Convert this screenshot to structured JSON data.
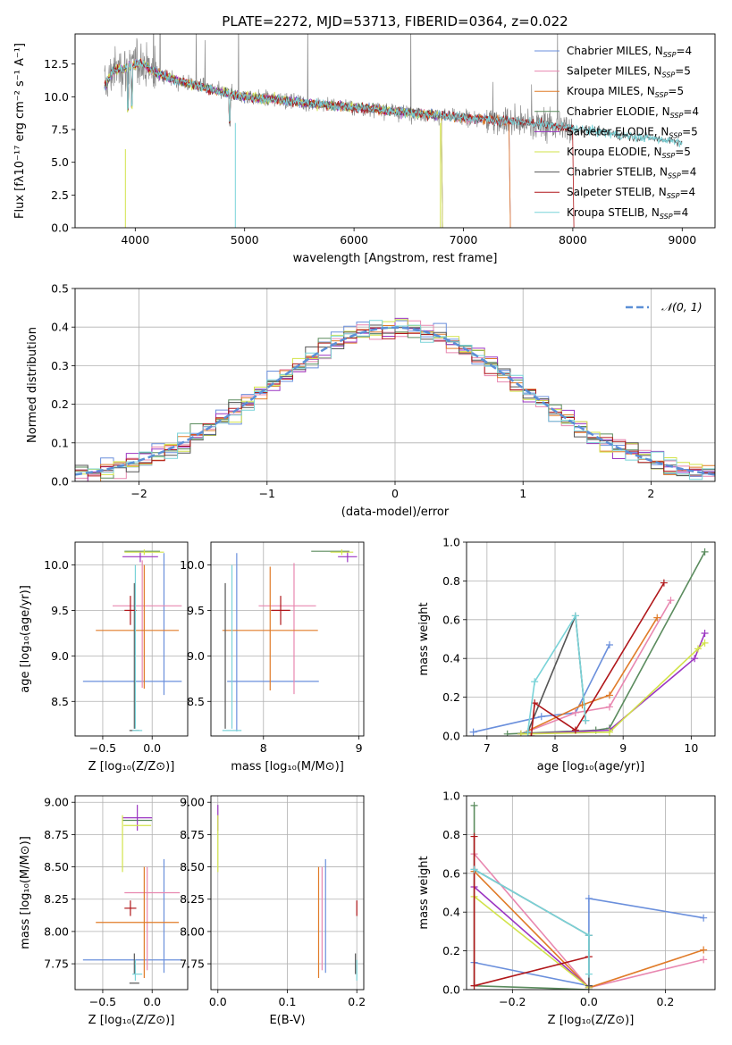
{
  "colors": {
    "Chabrier MILES": "#6a8fdc",
    "Salpeter MILES": "#e887b0",
    "Kroupa MILES": "#e07b28",
    "Chabrier ELODIE": "#5b8c5e",
    "Salpeter ELODIE": "#9b35c2",
    "Kroupa ELODIE": "#d2e34a",
    "Chabrier STELIB": "#555555",
    "Salpeter STELIB": "#b0171a",
    "Kroupa STELIB": "#79d3d8",
    "data": "#8a8a8a",
    "gauss": "#5b8fd6"
  },
  "chart_data": [
    {
      "id": "spectrum",
      "type": "line",
      "title": "PLATE=2272, MJD=53713, FIBERID=0364, z=0.022",
      "xlabel": "wavelength [Angstrom, rest frame]",
      "ylabel": "Flux [fλ10⁻¹⁷ erg cm⁻² s⁻¹ A⁻¹]",
      "xlim": [
        3450,
        9300
      ],
      "ylim": [
        0,
        14.8
      ],
      "xticks": [
        4000,
        5000,
        6000,
        7000,
        8000,
        9000
      ],
      "yticks": [
        0.0,
        2.5,
        5.0,
        7.5,
        10.0,
        12.5
      ],
      "grid": false,
      "legend_position": "top-right",
      "legend": [
        {
          "name": "Chabrier MILES",
          "nssp": "4"
        },
        {
          "name": "Salpeter MILES",
          "nssp": "5"
        },
        {
          "name": "Kroupa MILES",
          "nssp": "5"
        },
        {
          "name": "Chabrier ELODIE",
          "nssp": "4"
        },
        {
          "name": "Salpeter ELODIE",
          "nssp": "5"
        },
        {
          "name": "Kroupa ELODIE",
          "nssp": "5"
        },
        {
          "name": "Chabrier STELIB",
          "nssp": "4"
        },
        {
          "name": "Salpeter STELIB",
          "nssp": "4"
        },
        {
          "name": "Kroupa STELIB",
          "nssp": "4"
        }
      ],
      "continuum": [
        [
          3720,
          10.8
        ],
        [
          3800,
          12.0
        ],
        [
          3950,
          12.3
        ],
        [
          4050,
          12.6
        ],
        [
          4200,
          11.8
        ],
        [
          4400,
          11.2
        ],
        [
          4600,
          10.8
        ],
        [
          4800,
          10.3
        ],
        [
          5000,
          10.0
        ],
        [
          5300,
          9.8
        ],
        [
          5600,
          9.5
        ],
        [
          6000,
          9.2
        ],
        [
          6500,
          8.8
        ],
        [
          7000,
          8.4
        ],
        [
          7500,
          8.1
        ],
        [
          8000,
          7.6
        ],
        [
          8500,
          7.0
        ],
        [
          9000,
          6.6
        ]
      ]
    },
    {
      "id": "residuals",
      "type": "histogram",
      "xlabel": "(data-model)/error",
      "ylabel": "Normed distribution",
      "xlim": [
        -2.5,
        2.5
      ],
      "ylim": [
        0,
        0.5
      ],
      "xticks": [
        -2,
        -1,
        0,
        1,
        2
      ],
      "yticks": [
        0.0,
        0.1,
        0.2,
        0.3,
        0.4,
        0.5
      ],
      "grid": true,
      "legend_position": "top-right",
      "reference_label": "𝒩(0, 1)",
      "bin_width": 0.1
    },
    {
      "id": "age-vs-Z",
      "type": "errorbar",
      "xlabel": "Z [log₁₀(Z/Z⊙)]",
      "ylabel": "age  [log₁₀(age/yr)]",
      "xlim": [
        -0.78,
        0.36
      ],
      "ylim": [
        8.12,
        10.25
      ],
      "xticks": [
        -0.5,
        0.0
      ],
      "yticks": [
        8.5,
        9.0,
        9.5,
        10.0
      ],
      "grid": true,
      "points": [
        {
          "series": "Chabrier MILES",
          "x": -0.2,
          "xerr": 0.5,
          "y": 8.72,
          "yerr": 0
        },
        {
          "series": "Chabrier MILES",
          "x": 0.12,
          "xerr": 0,
          "y": 9.35,
          "yerr": 0.78
        },
        {
          "series": "Salpeter MILES",
          "x": -0.05,
          "xerr": 0.35,
          "y": 9.55,
          "yerr": 0
        },
        {
          "series": "Salpeter MILES",
          "x": -0.1,
          "xerr": 0,
          "y": 9.35,
          "yerr": 0.7
        },
        {
          "series": "Kroupa MILES",
          "x": -0.15,
          "xerr": 0.42,
          "y": 9.28,
          "yerr": 0
        },
        {
          "series": "Kroupa MILES",
          "x": -0.08,
          "xerr": 0,
          "y": 9.32,
          "yerr": 0.68
        },
        {
          "series": "Chabrier ELODIE",
          "x": -0.1,
          "xerr": 0.18,
          "y": 10.15,
          "yerr": 0
        },
        {
          "series": "Salpeter ELODIE",
          "x": -0.12,
          "xerr": 0.18,
          "y": 10.09,
          "yerr": 0.06
        },
        {
          "series": "Kroupa ELODIE",
          "x": -0.08,
          "xerr": 0.2,
          "y": 10.14,
          "yerr": 0.03
        },
        {
          "series": "Chabrier STELIB",
          "x": -0.18,
          "xerr": 0.05,
          "y": 8.18,
          "yerr": 0
        },
        {
          "series": "Chabrier STELIB",
          "x": -0.18,
          "xerr": 0,
          "y": 9.0,
          "yerr": 0.8
        },
        {
          "series": "Salpeter STELIB",
          "x": -0.22,
          "xerr": 0.06,
          "y": 9.5,
          "yerr": 0.16
        },
        {
          "series": "Kroupa STELIB",
          "x": -0.15,
          "xerr": 0.05,
          "y": 8.18,
          "yerr": 0
        },
        {
          "series": "Kroupa STELIB",
          "x": -0.17,
          "xerr": 0,
          "y": 9.1,
          "yerr": 0.9
        }
      ]
    },
    {
      "id": "age-vs-mass",
      "type": "errorbar",
      "xlabel": "mass [log₁₀(M/M⊙)]",
      "ylabel": "",
      "xlim": [
        7.45,
        9.05
      ],
      "ylim": [
        8.12,
        10.25
      ],
      "xticks": [
        8,
        9
      ],
      "yticks": [
        8.5,
        9.0,
        9.5,
        10.0
      ],
      "grid": true,
      "points": [
        {
          "series": "Chabrier MILES",
          "x": 8.1,
          "xerr": 0.48,
          "y": 8.72,
          "yerr": 0
        },
        {
          "series": "Chabrier MILES",
          "x": 7.72,
          "xerr": 0,
          "y": 9.15,
          "yerr": 0.98
        },
        {
          "series": "Salpeter MILES",
          "x": 8.25,
          "xerr": 0.3,
          "y": 9.55,
          "yerr": 0
        },
        {
          "series": "Salpeter MILES",
          "x": 8.32,
          "xerr": 0,
          "y": 9.3,
          "yerr": 0.72
        },
        {
          "series": "Kroupa MILES",
          "x": 8.07,
          "xerr": 0.5,
          "y": 9.28,
          "yerr": 0
        },
        {
          "series": "Kroupa MILES",
          "x": 8.07,
          "xerr": 0,
          "y": 9.3,
          "yerr": 0.68
        },
        {
          "series": "Chabrier ELODIE",
          "x": 8.7,
          "xerr": 0.2,
          "y": 10.15,
          "yerr": 0
        },
        {
          "series": "Salpeter ELODIE",
          "x": 8.88,
          "xerr": 0.1,
          "y": 10.09,
          "yerr": 0.06
        },
        {
          "series": "Kroupa ELODIE",
          "x": 8.82,
          "xerr": 0.12,
          "y": 10.14,
          "yerr": 0.03
        },
        {
          "series": "Chabrier STELIB",
          "x": 7.6,
          "xerr": 0,
          "y": 9.0,
          "yerr": 0.8
        },
        {
          "series": "Salpeter STELIB",
          "x": 8.18,
          "xerr": 0.1,
          "y": 9.5,
          "yerr": 0.16
        },
        {
          "series": "Kroupa STELIB",
          "x": 7.67,
          "xerr": 0.1,
          "y": 8.18,
          "yerr": 0
        },
        {
          "series": "Kroupa STELIB",
          "x": 7.67,
          "xerr": 0,
          "y": 9.1,
          "yerr": 0.9
        }
      ]
    },
    {
      "id": "massweight-vs-age",
      "type": "line",
      "xlabel": "age  [log₁₀(age/yr)]",
      "ylabel": "mass weight",
      "xlim": [
        6.7,
        10.35
      ],
      "ylim": [
        0,
        1.0
      ],
      "xticks": [
        7,
        8,
        9,
        10
      ],
      "yticks": [
        0.0,
        0.2,
        0.4,
        0.6,
        0.8,
        1.0
      ],
      "grid": true,
      "series": [
        {
          "name": "Chabrier MILES",
          "points": [
            [
              6.8,
              0.02
            ],
            [
              7.8,
              0.1
            ],
            [
              8.3,
              0.12
            ],
            [
              8.8,
              0.47
            ]
          ]
        },
        {
          "name": "Salpeter MILES",
          "points": [
            [
              7.5,
              0.01
            ],
            [
              8.3,
              0.12
            ],
            [
              8.8,
              0.15
            ],
            [
              9.7,
              0.7
            ]
          ]
        },
        {
          "name": "Kroupa MILES",
          "points": [
            [
              7.5,
              0.01
            ],
            [
              8.4,
              0.16
            ],
            [
              8.8,
              0.21
            ],
            [
              9.5,
              0.61
            ]
          ]
        },
        {
          "name": "Chabrier ELODIE",
          "points": [
            [
              7.3,
              0.01
            ],
            [
              8.6,
              0.03
            ],
            [
              8.8,
              0.04
            ],
            [
              10.2,
              0.95
            ]
          ]
        },
        {
          "name": "Salpeter ELODIE",
          "points": [
            [
              7.5,
              0.01
            ],
            [
              8.8,
              0.03
            ],
            [
              10.05,
              0.4
            ],
            [
              10.2,
              0.53
            ]
          ]
        },
        {
          "name": "Kroupa ELODIE",
          "points": [
            [
              7.5,
              0.01
            ],
            [
              8.8,
              0.02
            ],
            [
              10.1,
              0.45
            ],
            [
              10.2,
              0.48
            ]
          ]
        },
        {
          "name": "Chabrier STELIB",
          "points": [
            [
              7.6,
              0.02
            ],
            [
              8.3,
              0.62
            ],
            [
              8.45,
              0.08
            ]
          ]
        },
        {
          "name": "Salpeter STELIB",
          "points": [
            [
              7.65,
              0.0
            ],
            [
              7.7,
              0.17
            ],
            [
              8.3,
              0.03
            ],
            [
              9.6,
              0.79
            ]
          ]
        },
        {
          "name": "Kroupa STELIB",
          "points": [
            [
              7.6,
              0.02
            ],
            [
              7.7,
              0.28
            ],
            [
              8.3,
              0.62
            ],
            [
              8.45,
              0.08
            ]
          ]
        }
      ]
    },
    {
      "id": "mass-vs-Z",
      "type": "errorbar",
      "xlabel": "Z [log₁₀(Z/Z⊙)]",
      "ylabel": "mass [log₁₀(M/M⊙)]",
      "xlim": [
        -0.78,
        0.36
      ],
      "ylim": [
        7.55,
        9.05
      ],
      "xticks": [
        -0.5,
        0.0
      ],
      "yticks": [
        7.75,
        8.0,
        8.25,
        8.5,
        8.75,
        9.0
      ],
      "grid": true,
      "points": [
        {
          "series": "Chabrier MILES",
          "x": -0.2,
          "xerr": 0.5,
          "y": 7.78,
          "yerr": 0
        },
        {
          "series": "Chabrier MILES",
          "x": 0.12,
          "xerr": 0,
          "y": 8.12,
          "yerr": 0.44
        },
        {
          "series": "Salpeter MILES",
          "x": 0.0,
          "xerr": 0.28,
          "y": 8.3,
          "yerr": 0
        },
        {
          "series": "Salpeter MILES",
          "x": -0.05,
          "xerr": 0,
          "y": 8.1,
          "yerr": 0.4
        },
        {
          "series": "Kroupa MILES",
          "x": -0.15,
          "xerr": 0.42,
          "y": 8.07,
          "yerr": 0
        },
        {
          "series": "Kroupa MILES",
          "x": -0.08,
          "xerr": 0,
          "y": 8.07,
          "yerr": 0.43
        },
        {
          "series": "Chabrier ELODIE",
          "x": -0.15,
          "xerr": 0.15,
          "y": 8.86,
          "yerr": 0
        },
        {
          "series": "Salpeter ELODIE",
          "x": -0.15,
          "xerr": 0.15,
          "y": 8.88,
          "yerr": 0.1
        },
        {
          "series": "Kroupa ELODIE",
          "x": -0.15,
          "xerr": 0.14,
          "y": 8.82,
          "yerr": 0
        },
        {
          "series": "Kroupa ELODIE",
          "x": -0.3,
          "xerr": 0,
          "y": 8.68,
          "yerr": 0.22
        },
        {
          "series": "Chabrier STELIB",
          "x": -0.18,
          "xerr": 0.05,
          "y": 7.6,
          "yerr": 0
        },
        {
          "series": "Chabrier STELIB",
          "x": -0.18,
          "xerr": 0,
          "y": 7.75,
          "yerr": 0.08
        },
        {
          "series": "Salpeter STELIB",
          "x": -0.22,
          "xerr": 0.06,
          "y": 8.18,
          "yerr": 0.06
        },
        {
          "series": "Kroupa STELIB",
          "x": -0.15,
          "xerr": 0.05,
          "y": 7.67,
          "yerr": 0
        },
        {
          "series": "Kroupa STELIB",
          "x": -0.17,
          "xerr": 0,
          "y": 7.7,
          "yerr": 0.08
        }
      ]
    },
    {
      "id": "mass-vs-EBV",
      "type": "errorbar",
      "xlabel": "E(B-V)",
      "ylabel": "",
      "xlim": [
        -0.01,
        0.21
      ],
      "ylim": [
        7.55,
        9.05
      ],
      "xticks": [
        0.0,
        0.1,
        0.2
      ],
      "yticks": [
        7.75,
        8.0,
        8.25,
        8.5,
        8.75,
        9.0
      ],
      "grid": true,
      "points": [
        {
          "series": "Chabrier MILES",
          "x": 0.155,
          "xerr": 0,
          "y": 8.12,
          "yerr": 0.44
        },
        {
          "series": "Salpeter MILES",
          "x": 0.15,
          "xerr": 0,
          "y": 8.1,
          "yerr": 0.4
        },
        {
          "series": "Kroupa MILES",
          "x": 0.145,
          "xerr": 0,
          "y": 8.07,
          "yerr": 0.43
        },
        {
          "series": "Salpeter ELODIE",
          "x": 0.0,
          "xerr": 0,
          "y": 8.88,
          "yerr": 0.1
        },
        {
          "series": "Kroupa ELODIE",
          "x": 0.0,
          "xerr": 0,
          "y": 8.68,
          "yerr": 0.22
        },
        {
          "series": "Chabrier STELIB",
          "x": 0.198,
          "xerr": 0,
          "y": 7.75,
          "yerr": 0.08
        },
        {
          "series": "Salpeter STELIB",
          "x": 0.2,
          "xerr": 0,
          "y": 8.18,
          "yerr": 0.06
        },
        {
          "series": "Kroupa STELIB",
          "x": 0.2,
          "xerr": 0,
          "y": 7.7,
          "yerr": 0.08
        }
      ]
    },
    {
      "id": "massweight-vs-Z",
      "type": "line",
      "xlabel": "Z [log₁₀(Z/Z⊙)]",
      "ylabel": "mass weight",
      "xlim": [
        -0.32,
        0.33
      ],
      "ylim": [
        0,
        1.0
      ],
      "xticks": [
        -0.2,
        0.0,
        0.2
      ],
      "yticks": [
        0.0,
        0.2,
        0.4,
        0.6,
        0.8,
        1.0
      ],
      "grid": true,
      "series": [
        {
          "name": "Chabrier MILES",
          "points": [
            [
              -0.3,
              0.14
            ],
            [
              0.0,
              0.02
            ],
            [
              0.0,
              0.47
            ],
            [
              0.3,
              0.37
            ]
          ]
        },
        {
          "name": "Salpeter MILES",
          "points": [
            [
              -0.3,
              0.7
            ],
            [
              0.0,
              0.01
            ],
            [
              0.3,
              0.155
            ]
          ]
        },
        {
          "name": "Kroupa MILES",
          "points": [
            [
              -0.3,
              0.61
            ],
            [
              0.0,
              0.01
            ],
            [
              0.3,
              0.205
            ]
          ]
        },
        {
          "name": "Chabrier ELODIE",
          "points": [
            [
              -0.3,
              0.95
            ],
            [
              -0.3,
              0.02
            ],
            [
              0.0,
              0.0
            ]
          ]
        },
        {
          "name": "Salpeter ELODIE",
          "points": [
            [
              -0.3,
              0.53
            ],
            [
              0.0,
              0.01
            ]
          ]
        },
        {
          "name": "Kroupa ELODIE",
          "points": [
            [
              -0.3,
              0.48
            ],
            [
              0.0,
              0.01
            ]
          ]
        },
        {
          "name": "Chabrier STELIB",
          "points": [
            [
              -0.3,
              0.62
            ],
            [
              0.0,
              0.28
            ],
            [
              0.0,
              0.02
            ]
          ]
        },
        {
          "name": "Salpeter STELIB",
          "points": [
            [
              -0.3,
              0.79
            ],
            [
              -0.3,
              0.02
            ],
            [
              0.0,
              0.17
            ]
          ]
        },
        {
          "name": "Kroupa STELIB",
          "points": [
            [
              -0.3,
              0.62
            ],
            [
              0.0,
              0.28
            ],
            [
              0.0,
              0.08
            ]
          ]
        }
      ]
    }
  ]
}
